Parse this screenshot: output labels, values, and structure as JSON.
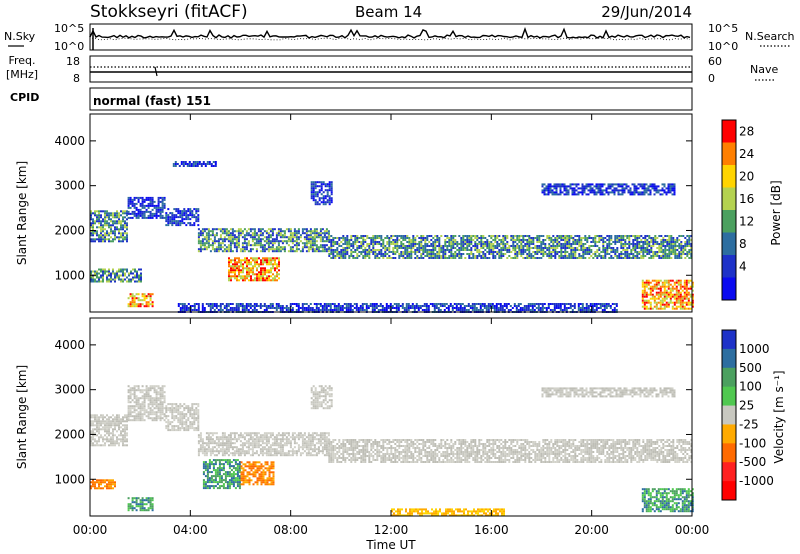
{
  "header": {
    "title": "Stokkseyri (fitACF)",
    "beam": "Beam 14",
    "date": "29/Jun/2014"
  },
  "noise_panel": {
    "left_label": "N.Sky",
    "right_label": "N.Search",
    "left_ticks": [
      "10^5",
      "10^0"
    ],
    "right_ticks": [
      "10^5",
      "10^0"
    ]
  },
  "freq_panel": {
    "left_label_line1": "Freq.",
    "left_label_line2": "[MHz]",
    "right_label": "Nave",
    "left_ticks": [
      "18",
      "8"
    ],
    "right_ticks": [
      "60",
      "0"
    ]
  },
  "cpid_panel": {
    "label": "CPID",
    "text": "normal (fast) 151"
  },
  "time_axis": {
    "label": "Time UT",
    "ticks": [
      "00:00",
      "04:00",
      "08:00",
      "12:00",
      "16:00",
      "20:00",
      "00:00"
    ]
  },
  "power_scale": {
    "label": "Power [dB]",
    "ticks": [
      "28",
      "24",
      "20",
      "16",
      "12",
      "8",
      "4"
    ],
    "colors": [
      "#ff0000",
      "#ff7f00",
      "#ffd400",
      "#b4d250",
      "#4ba05f",
      "#2d6ea0",
      "#1e32c8",
      "#0a0af0"
    ]
  },
  "velocity_scale": {
    "label": "Velocity [m s⁻¹]",
    "ticks": [
      "1000",
      "500",
      "100",
      "25",
      "-25",
      "-100",
      "-500",
      "-1000"
    ],
    "colors": [
      "#1e32c8",
      "#2d6ea0",
      "#4ba05f",
      "#50c850",
      "#c8c8c0",
      "#ffaa00",
      "#ff6a00",
      "#ff2020",
      "#ff0000"
    ]
  },
  "chart_data": [
    {
      "type": "heatmap",
      "name": "power",
      "ylabel": "Slant Range [km]",
      "xlabel": "Time UT",
      "yticks": [
        "1000",
        "2000",
        "3000",
        "4000"
      ],
      "ylim": [
        180,
        4600
      ],
      "xlim": [
        0,
        24
      ],
      "regions": [
        {
          "t0": 0.0,
          "t1": 1.5,
          "r0": 1750,
          "r1": 2450,
          "level": "med"
        },
        {
          "t0": 1.5,
          "t1": 3.0,
          "r0": 2300,
          "r1": 2750,
          "level": "low"
        },
        {
          "t0": 3.0,
          "t1": 4.3,
          "r0": 2100,
          "r1": 2500,
          "level": "low"
        },
        {
          "t0": 4.3,
          "t1": 9.5,
          "r0": 1550,
          "r1": 2050,
          "level": "med"
        },
        {
          "t0": 9.5,
          "t1": 24.0,
          "r0": 1400,
          "r1": 1900,
          "level": "med"
        },
        {
          "t0": 5.5,
          "t1": 7.5,
          "r0": 900,
          "r1": 1400,
          "level": "high"
        },
        {
          "t0": 0.0,
          "t1": 2.0,
          "r0": 850,
          "r1": 1150,
          "level": "med"
        },
        {
          "t0": 1.5,
          "t1": 2.5,
          "r0": 300,
          "r1": 600,
          "level": "high"
        },
        {
          "t0": 3.5,
          "t1": 21.0,
          "r0": 200,
          "r1": 380,
          "level": "low"
        },
        {
          "t0": 8.8,
          "t1": 9.6,
          "r0": 2600,
          "r1": 3100,
          "level": "low"
        },
        {
          "t0": 18.0,
          "t1": 23.3,
          "r0": 2800,
          "r1": 3050,
          "level": "low"
        },
        {
          "t0": 22.0,
          "t1": 24.0,
          "r0": 250,
          "r1": 900,
          "level": "high"
        },
        {
          "t0": 3.3,
          "t1": 5.0,
          "r0": 3450,
          "r1": 3550,
          "level": "low"
        }
      ]
    },
    {
      "type": "heatmap",
      "name": "velocity",
      "ylabel": "Slant Range [km]",
      "xlabel": "Time UT",
      "yticks": [
        "1000",
        "2000",
        "3000",
        "4000"
      ],
      "ylim": [
        180,
        4600
      ],
      "xlim": [
        0,
        24
      ],
      "regions": [
        {
          "t0": 0.0,
          "t1": 1.5,
          "r0": 1750,
          "r1": 2450,
          "level": "grey"
        },
        {
          "t0": 1.5,
          "t1": 3.0,
          "r0": 2300,
          "r1": 3100,
          "level": "grey"
        },
        {
          "t0": 3.0,
          "t1": 4.3,
          "r0": 2100,
          "r1": 2700,
          "level": "grey"
        },
        {
          "t0": 4.3,
          "t1": 9.5,
          "r0": 1550,
          "r1": 2050,
          "level": "grey"
        },
        {
          "t0": 9.5,
          "t1": 24.0,
          "r0": 1400,
          "r1": 1900,
          "level": "grey"
        },
        {
          "t0": 4.5,
          "t1": 6.0,
          "r0": 800,
          "r1": 1450,
          "level": "green"
        },
        {
          "t0": 6.0,
          "t1": 7.3,
          "r0": 900,
          "r1": 1400,
          "level": "orange"
        },
        {
          "t0": 0.0,
          "t1": 1.0,
          "r0": 800,
          "r1": 1000,
          "level": "orange"
        },
        {
          "t0": 1.5,
          "t1": 2.5,
          "r0": 300,
          "r1": 600,
          "level": "green"
        },
        {
          "t0": 12.0,
          "t1": 16.5,
          "r0": 200,
          "r1": 350,
          "level": "yellow"
        },
        {
          "t0": 22.0,
          "t1": 24.0,
          "r0": 300,
          "r1": 800,
          "level": "green"
        },
        {
          "t0": 8.8,
          "t1": 9.6,
          "r0": 2600,
          "r1": 3100,
          "level": "grey"
        },
        {
          "t0": 18.0,
          "t1": 23.3,
          "r0": 2850,
          "r1": 3050,
          "level": "grey"
        }
      ]
    }
  ]
}
